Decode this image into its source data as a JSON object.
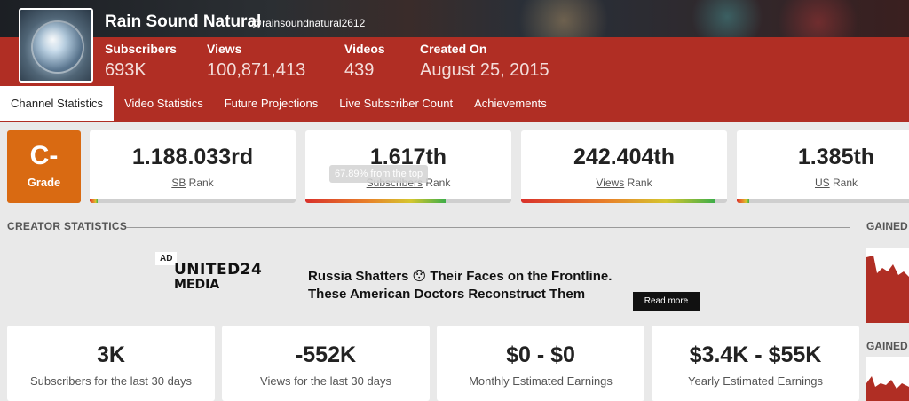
{
  "channel": {
    "name": "Rain Sound Natural",
    "handle": "@rainsoundnatural2612",
    "stats": [
      {
        "label": "Subscribers",
        "value": "693K"
      },
      {
        "label": "Views",
        "value": "100,871,413"
      },
      {
        "label": "Videos",
        "value": "439"
      },
      {
        "label": "Created On",
        "value": "August 25, 2015"
      }
    ]
  },
  "tabs": [
    "Channel Statistics",
    "Video Statistics",
    "Future Projections",
    "Live Subscriber Count",
    "Achievements"
  ],
  "grade": {
    "value": "C-",
    "label": "Grade"
  },
  "ranks": [
    {
      "value": "1.188.033rd",
      "prefix": "SB",
      "suffix": "Rank",
      "fill": 0.04
    },
    {
      "value": "1.617th",
      "prefix": "Subscribers",
      "suffix": "Rank",
      "fill": 0.68
    },
    {
      "value": "242.404th",
      "prefix": "Views",
      "suffix": "Rank",
      "fill": 0.94
    },
    {
      "value": "1.385th",
      "prefix": "US",
      "suffix": "Rank",
      "fill": 0.07
    }
  ],
  "tooltip": "67.89% from the top",
  "sections": {
    "creator_statistics": "CREATOR STATISTICS",
    "gained_1": "GAINED",
    "gained_2": "GAINED"
  },
  "ad": {
    "tag": "AD",
    "logo_top": "UNITED24",
    "logo_bottom": "MEDIA",
    "headline_line1": "Russia Shatters 😯 Their Faces on the Frontline.",
    "headline_line2": "These American Doctors Reconstruct Them",
    "button": "Read more"
  },
  "summary": [
    {
      "value": "3K",
      "label": "Subscribers for the last 30 days"
    },
    {
      "value": "-552K",
      "label": "Views for the last 30 days"
    },
    {
      "value": "$0 - $0",
      "label": "Monthly Estimated Earnings"
    },
    {
      "value": "$3.4K - $55K",
      "label": "Yearly Estimated Earnings"
    }
  ],
  "colors": {
    "brand": "#b02e24",
    "grade": "#d96a12"
  }
}
